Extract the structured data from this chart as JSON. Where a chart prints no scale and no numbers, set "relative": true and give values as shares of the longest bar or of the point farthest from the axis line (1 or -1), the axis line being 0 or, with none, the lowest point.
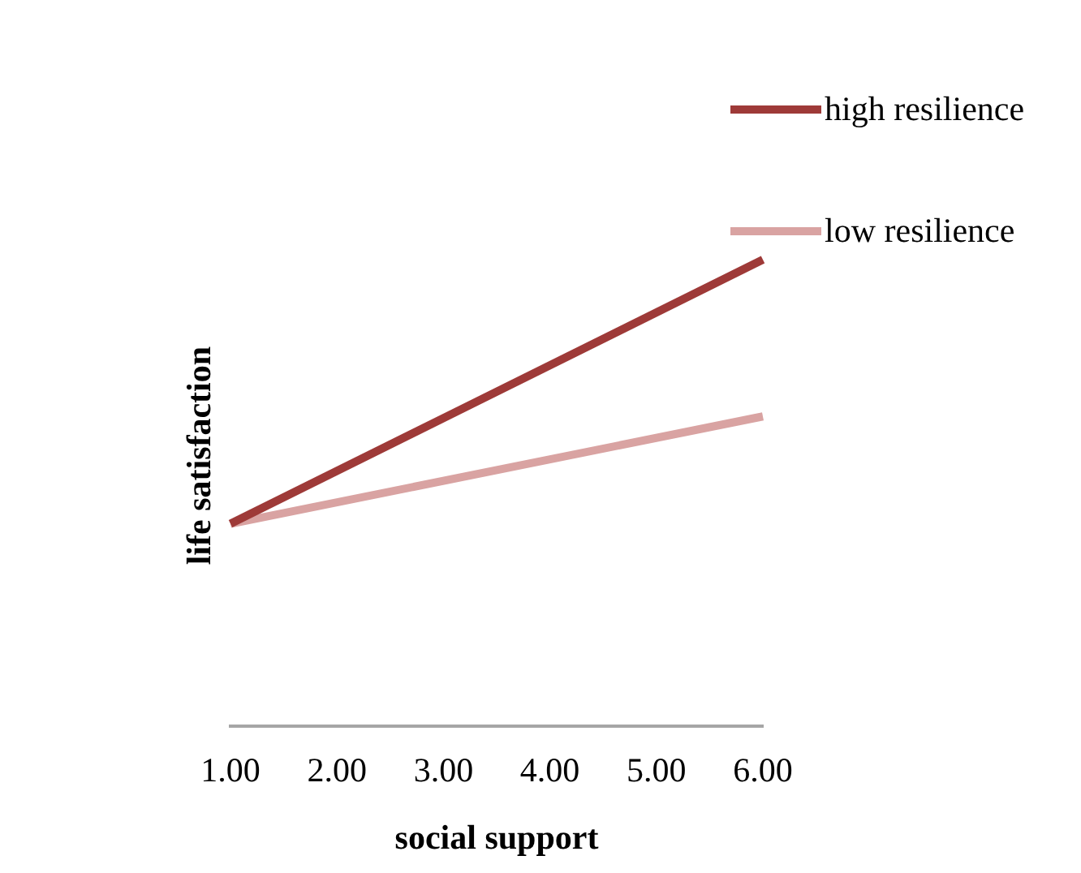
{
  "chart_data": {
    "type": "line",
    "xlabel": "social support",
    "ylabel": "life satisfaction",
    "relative": true,
    "x": [
      1,
      6
    ],
    "xlim": [
      1,
      6
    ],
    "xticks": [
      {
        "value": 1,
        "label": "1.00"
      },
      {
        "value": 2,
        "label": "2.00"
      },
      {
        "value": 3,
        "label": "3.00"
      },
      {
        "value": 4,
        "label": "4.00"
      },
      {
        "value": 5,
        "label": "5.00"
      },
      {
        "value": 6,
        "label": "6.00"
      }
    ],
    "series": [
      {
        "name": "high resilience",
        "color": "#9e3a38",
        "values": [
          0.434,
          1
        ]
      },
      {
        "name": "low resilience",
        "color": "#d9a3a2",
        "values": [
          0.434,
          0.664
        ]
      }
    ],
    "grid": false,
    "legend": "top right",
    "marker": "none",
    "line_style": "solid"
  }
}
